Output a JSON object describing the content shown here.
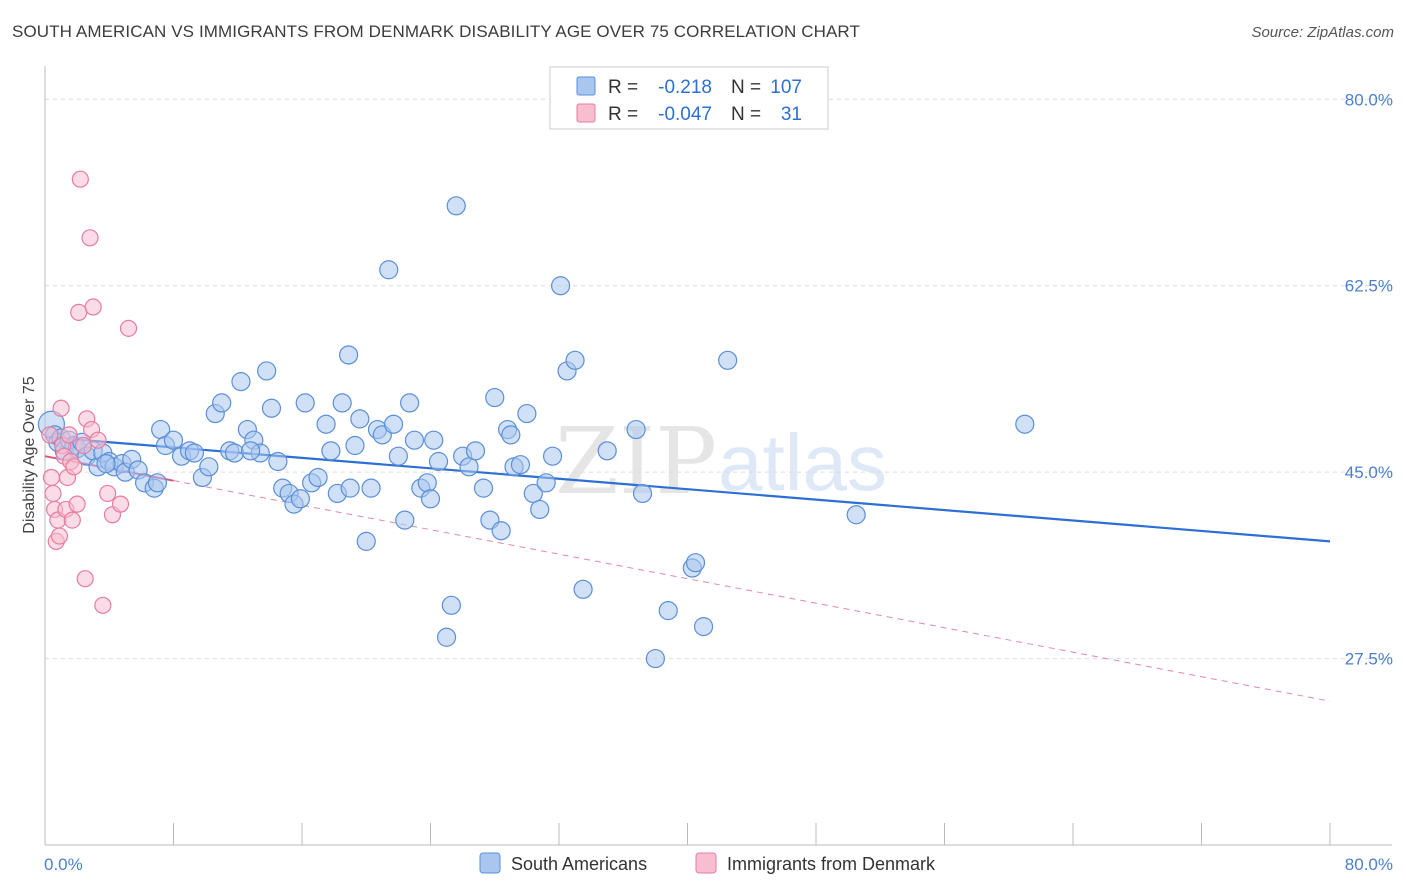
{
  "title": "SOUTH AMERICAN VS IMMIGRANTS FROM DENMARK DISABILITY AGE OVER 75 CORRELATION CHART",
  "source": "Source: ZipAtlas.com",
  "watermark": {
    "zip": "ZIP",
    "atlas": "atlas"
  },
  "colors": {
    "blue_fill": "#a9c6ef",
    "blue_stroke": "#5b8fd8",
    "blue_line": "#2d6fd4",
    "pink_fill": "#f7bed0",
    "pink_stroke": "#e67d9f",
    "pink_line": "#d9557f",
    "tick_text": "#4a7fd0",
    "grid": "#dcdcdc"
  },
  "legend": {
    "rows": [
      {
        "r_label": "R =",
        "r_value": "-0.218",
        "n_label": "N =",
        "n_value": "107"
      },
      {
        "r_label": "R =",
        "r_value": "-0.047",
        "n_label": "N =",
        "n_value": "31"
      }
    ]
  },
  "chart_data": {
    "type": "scatter",
    "ylabel": "Disability Age Over 75",
    "xlim": [
      0,
      80
    ],
    "ylim": [
      10,
      82
    ],
    "x_tick_labels": [
      "0.0%",
      "80.0%"
    ],
    "y_ticks": [
      27.5,
      45.0,
      62.5,
      80.0
    ],
    "y_tick_labels": [
      "27.5%",
      "45.0%",
      "62.5%",
      "80.0%"
    ],
    "grid": true,
    "legend_position": "top-center",
    "series": [
      {
        "name": "South Americans",
        "r": -0.218,
        "n": 107,
        "trend": {
          "x": [
            0,
            80
          ],
          "y": [
            48.3,
            38.5
          ],
          "style": "solid"
        },
        "points": [
          [
            0.4,
            49.5
          ],
          [
            0.6,
            48.5
          ],
          [
            0.8,
            47.8
          ],
          [
            1.0,
            48.2
          ],
          [
            1.2,
            47.0
          ],
          [
            1.5,
            48.0
          ],
          [
            1.8,
            47.5
          ],
          [
            2.0,
            47.2
          ],
          [
            2.3,
            47.8
          ],
          [
            2.6,
            46.5
          ],
          [
            3.0,
            47.0
          ],
          [
            3.3,
            45.5
          ],
          [
            3.6,
            46.8
          ],
          [
            4.0,
            46.0
          ],
          [
            4.3,
            45.5
          ],
          [
            4.8,
            45.8
          ],
          [
            5.0,
            45.0
          ],
          [
            5.4,
            46.2
          ],
          [
            5.8,
            45.2
          ],
          [
            6.2,
            44.0
          ],
          [
            6.8,
            43.5
          ],
          [
            7.2,
            49.0
          ],
          [
            7.5,
            47.5
          ],
          [
            8.0,
            48.0
          ],
          [
            8.5,
            46.5
          ],
          [
            9.0,
            47.0
          ],
          [
            9.3,
            46.8
          ],
          [
            9.8,
            44.5
          ],
          [
            10.2,
            45.5
          ],
          [
            10.6,
            50.5
          ],
          [
            11.0,
            51.5
          ],
          [
            11.5,
            47.0
          ],
          [
            11.8,
            46.8
          ],
          [
            12.2,
            53.5
          ],
          [
            12.6,
            49.0
          ],
          [
            13.0,
            48.0
          ],
          [
            13.4,
            46.8
          ],
          [
            13.8,
            54.5
          ],
          [
            14.1,
            51.0
          ],
          [
            14.5,
            46.0
          ],
          [
            14.8,
            43.5
          ],
          [
            15.2,
            43.0
          ],
          [
            15.5,
            42.0
          ],
          [
            15.9,
            42.5
          ],
          [
            16.2,
            51.5
          ],
          [
            16.6,
            44.0
          ],
          [
            17.0,
            44.5
          ],
          [
            17.5,
            49.5
          ],
          [
            17.8,
            47.0
          ],
          [
            18.2,
            43.0
          ],
          [
            18.5,
            51.5
          ],
          [
            18.9,
            56.0
          ],
          [
            19.3,
            47.5
          ],
          [
            19.6,
            50.0
          ],
          [
            20.0,
            38.5
          ],
          [
            20.3,
            43.5
          ],
          [
            20.7,
            49.0
          ],
          [
            21.0,
            48.5
          ],
          [
            21.4,
            64.0
          ],
          [
            21.7,
            49.5
          ],
          [
            22.0,
            46.5
          ],
          [
            22.4,
            40.5
          ],
          [
            22.7,
            51.5
          ],
          [
            23.0,
            48.0
          ],
          [
            23.4,
            43.5
          ],
          [
            23.8,
            44.0
          ],
          [
            24.2,
            48.0
          ],
          [
            24.5,
            46.0
          ],
          [
            25.0,
            29.5
          ],
          [
            25.3,
            32.5
          ],
          [
            25.6,
            70.0
          ],
          [
            26.0,
            46.5
          ],
          [
            26.4,
            45.5
          ],
          [
            26.8,
            47.0
          ],
          [
            27.3,
            43.5
          ],
          [
            27.7,
            40.5
          ],
          [
            28.0,
            52.0
          ],
          [
            28.4,
            39.5
          ],
          [
            28.8,
            49.0
          ],
          [
            29.2,
            45.5
          ],
          [
            29.6,
            45.7
          ],
          [
            30.0,
            50.5
          ],
          [
            30.4,
            43.0
          ],
          [
            30.8,
            41.5
          ],
          [
            31.2,
            44.0
          ],
          [
            31.6,
            46.5
          ],
          [
            32.1,
            62.5
          ],
          [
            32.5,
            54.5
          ],
          [
            33.0,
            55.5
          ],
          [
            33.5,
            34.0
          ],
          [
            36.8,
            49.0
          ],
          [
            37.2,
            43.0
          ],
          [
            38.0,
            27.5
          ],
          [
            38.8,
            32.0
          ],
          [
            40.3,
            36.0
          ],
          [
            40.5,
            36.5
          ],
          [
            41.0,
            30.5
          ],
          [
            42.5,
            55.5
          ],
          [
            50.5,
            41.0
          ],
          [
            61.0,
            49.5
          ],
          [
            3.8,
            45.8
          ],
          [
            7.0,
            44.0
          ],
          [
            12.8,
            47.0
          ],
          [
            19.0,
            43.5
          ],
          [
            24.0,
            42.5
          ],
          [
            29.0,
            48.5
          ],
          [
            35.0,
            47.0
          ]
        ]
      },
      {
        "name": "Immigrants from Denmark",
        "r": -0.047,
        "n": 31,
        "trend_fit": {
          "x": [
            0,
            8
          ],
          "y": [
            46.5,
            44.2
          ],
          "style": "solid"
        },
        "trend_ext": {
          "x": [
            8,
            80
          ],
          "y": [
            44.2,
            23.5
          ],
          "style": "dashed"
        },
        "points": [
          [
            0.3,
            48.5
          ],
          [
            0.4,
            44.5
          ],
          [
            0.5,
            43.0
          ],
          [
            0.6,
            41.5
          ],
          [
            0.7,
            38.5
          ],
          [
            0.8,
            40.5
          ],
          [
            0.9,
            39.0
          ],
          [
            1.0,
            51.0
          ],
          [
            1.1,
            47.5
          ],
          [
            1.2,
            46.5
          ],
          [
            1.3,
            41.5
          ],
          [
            1.4,
            44.5
          ],
          [
            1.5,
            48.5
          ],
          [
            1.6,
            46.0
          ],
          [
            1.7,
            40.5
          ],
          [
            1.8,
            45.5
          ],
          [
            2.0,
            42.0
          ],
          [
            2.1,
            60.0
          ],
          [
            2.2,
            72.5
          ],
          [
            2.4,
            47.5
          ],
          [
            2.5,
            35.0
          ],
          [
            2.6,
            50.0
          ],
          [
            2.8,
            67.0
          ],
          [
            2.9,
            49.0
          ],
          [
            3.0,
            60.5
          ],
          [
            3.3,
            48.0
          ],
          [
            3.6,
            32.5
          ],
          [
            3.9,
            43.0
          ],
          [
            4.2,
            41.0
          ],
          [
            4.7,
            42.0
          ],
          [
            5.2,
            58.5
          ]
        ]
      }
    ]
  },
  "bottom_legend": [
    "South Americans",
    "Immigrants from Denmark"
  ]
}
